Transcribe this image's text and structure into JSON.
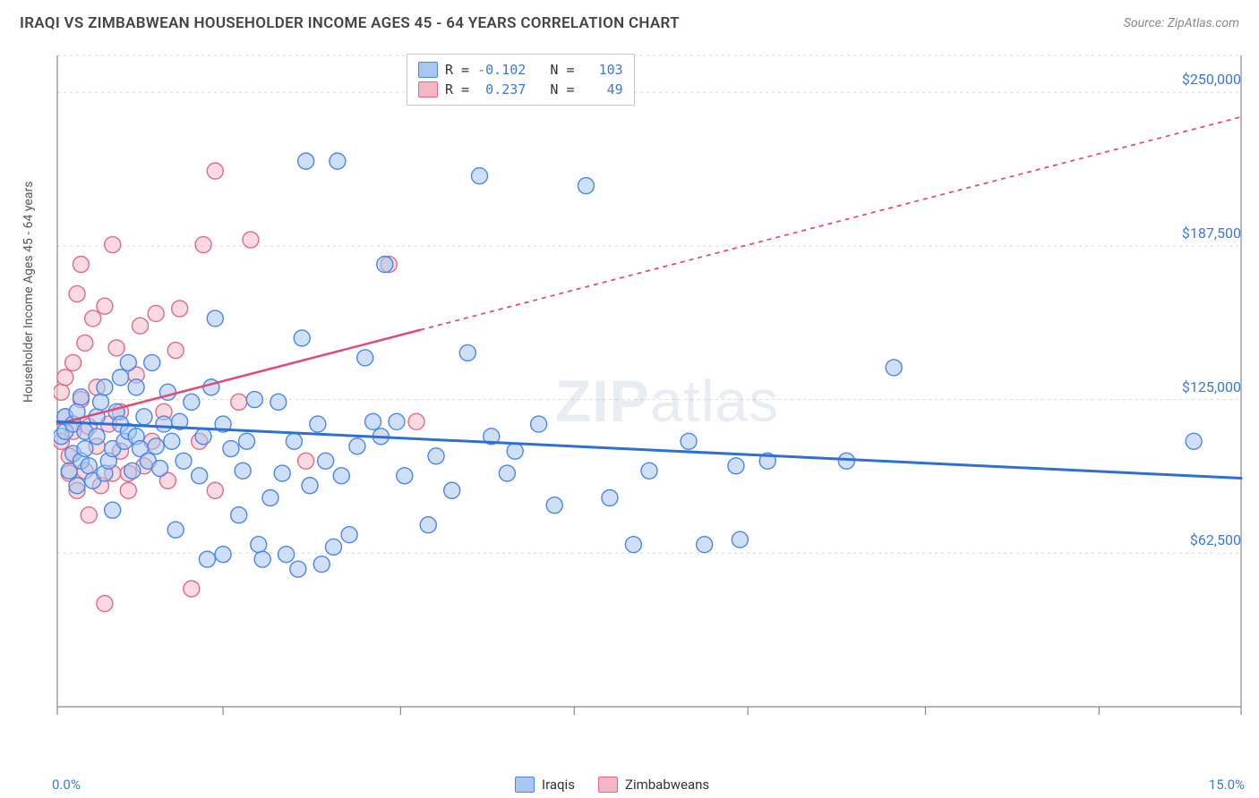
{
  "header": {
    "title": "IRAQI VS ZIMBABWEAN HOUSEHOLDER INCOME AGES 45 - 64 YEARS CORRELATION CHART",
    "source_label": "Source: ZipAtlas.com"
  },
  "chart": {
    "type": "scatter",
    "ylabel": "Householder Income Ages 45 - 64 years",
    "xlim": [
      0.0,
      15.0
    ],
    "ylim": [
      0,
      265000
    ],
    "x_tick_positions": [
      0,
      2.1,
      4.35,
      6.55,
      8.75,
      11.0,
      13.2,
      15.0
    ],
    "y_gridlines": [
      62500,
      125000,
      187500,
      250000
    ],
    "y_tick_labels": [
      "$62,500",
      "$125,000",
      "$187,500",
      "$250,000"
    ],
    "x_min_label": "0.0%",
    "x_max_label": "15.0%",
    "background_color": "#ffffff",
    "grid_color": "#d8d8d8",
    "axis_color": "#888888",
    "series": {
      "iraqis": {
        "label": "Iraqis",
        "marker_fill": "#a8c6ef",
        "marker_stroke": "#4a86e8",
        "marker_radius": 9,
        "fill_opacity": 0.55,
        "R": "-0.102",
        "N": "103",
        "trend": {
          "color": "#2f6fd0",
          "width": 3,
          "y_at_x0": 116000,
          "y_at_x15": 93000,
          "solid_until_x": 15.0
        },
        "points": [
          [
            0.05,
            110000
          ],
          [
            0.1,
            112000
          ],
          [
            0.1,
            118000
          ],
          [
            0.15,
            96000
          ],
          [
            0.2,
            103000
          ],
          [
            0.2,
            115000
          ],
          [
            0.25,
            120000
          ],
          [
            0.25,
            90000
          ],
          [
            0.3,
            100000
          ],
          [
            0.3,
            126000
          ],
          [
            0.35,
            112000
          ],
          [
            0.35,
            105000
          ],
          [
            0.4,
            98000
          ],
          [
            0.45,
            92000
          ],
          [
            0.5,
            110000
          ],
          [
            0.5,
            118000
          ],
          [
            0.55,
            124000
          ],
          [
            0.6,
            130000
          ],
          [
            0.6,
            95000
          ],
          [
            0.65,
            100000
          ],
          [
            0.7,
            105000
          ],
          [
            0.7,
            80000
          ],
          [
            0.75,
            120000
          ],
          [
            0.8,
            115000
          ],
          [
            0.8,
            134000
          ],
          [
            0.85,
            108000
          ],
          [
            0.9,
            112000
          ],
          [
            0.9,
            140000
          ],
          [
            0.95,
            96000
          ],
          [
            1.0,
            110000
          ],
          [
            1.0,
            130000
          ],
          [
            1.05,
            105000
          ],
          [
            1.1,
            118000
          ],
          [
            1.15,
            100000
          ],
          [
            1.2,
            140000
          ],
          [
            1.25,
            106000
          ],
          [
            1.3,
            97000
          ],
          [
            1.35,
            115000
          ],
          [
            1.4,
            128000
          ],
          [
            1.45,
            108000
          ],
          [
            1.5,
            72000
          ],
          [
            1.55,
            116000
          ],
          [
            1.6,
            100000
          ],
          [
            1.7,
            124000
          ],
          [
            1.8,
            94000
          ],
          [
            1.85,
            110000
          ],
          [
            1.9,
            60000
          ],
          [
            1.95,
            130000
          ],
          [
            2.0,
            158000
          ],
          [
            2.1,
            115000
          ],
          [
            2.1,
            62000
          ],
          [
            2.2,
            105000
          ],
          [
            2.3,
            78000
          ],
          [
            2.35,
            96000
          ],
          [
            2.4,
            108000
          ],
          [
            2.5,
            125000
          ],
          [
            2.55,
            66000
          ],
          [
            2.6,
            60000
          ],
          [
            2.7,
            85000
          ],
          [
            2.8,
            124000
          ],
          [
            2.85,
            95000
          ],
          [
            2.9,
            62000
          ],
          [
            3.0,
            108000
          ],
          [
            3.05,
            56000
          ],
          [
            3.1,
            150000
          ],
          [
            3.15,
            222000
          ],
          [
            3.2,
            90000
          ],
          [
            3.3,
            115000
          ],
          [
            3.35,
            58000
          ],
          [
            3.4,
            100000
          ],
          [
            3.5,
            65000
          ],
          [
            3.55,
            222000
          ],
          [
            3.6,
            94000
          ],
          [
            3.7,
            70000
          ],
          [
            3.8,
            106000
          ],
          [
            3.9,
            142000
          ],
          [
            4.0,
            116000
          ],
          [
            4.1,
            110000
          ],
          [
            4.15,
            180000
          ],
          [
            4.3,
            116000
          ],
          [
            4.4,
            94000
          ],
          [
            4.7,
            74000
          ],
          [
            4.8,
            102000
          ],
          [
            5.0,
            88000
          ],
          [
            5.2,
            144000
          ],
          [
            5.35,
            216000
          ],
          [
            5.5,
            110000
          ],
          [
            5.7,
            95000
          ],
          [
            5.8,
            104000
          ],
          [
            6.1,
            115000
          ],
          [
            6.3,
            82000
          ],
          [
            6.7,
            212000
          ],
          [
            7.0,
            85000
          ],
          [
            7.3,
            66000
          ],
          [
            7.5,
            96000
          ],
          [
            8.0,
            108000
          ],
          [
            8.2,
            66000
          ],
          [
            8.6,
            98000
          ],
          [
            8.65,
            68000
          ],
          [
            9.0,
            100000
          ],
          [
            10.0,
            100000
          ],
          [
            10.6,
            138000
          ],
          [
            14.4,
            108000
          ]
        ]
      },
      "zimbabweans": {
        "label": "Zimbabweans",
        "marker_fill": "#f4b5c4",
        "marker_stroke": "#e06a8a",
        "marker_radius": 9,
        "fill_opacity": 0.5,
        "R": "0.237",
        "N": "49",
        "trend": {
          "color": "#e24a77",
          "width": 2.5,
          "y_at_x0": 115000,
          "y_at_x15": 240000,
          "solid_until_x": 4.6
        },
        "points": [
          [
            0.05,
            128000
          ],
          [
            0.05,
            108000
          ],
          [
            0.1,
            118000
          ],
          [
            0.1,
            134000
          ],
          [
            0.15,
            102000
          ],
          [
            0.15,
            95000
          ],
          [
            0.2,
            112000
          ],
          [
            0.2,
            140000
          ],
          [
            0.25,
            168000
          ],
          [
            0.25,
            88000
          ],
          [
            0.3,
            125000
          ],
          [
            0.3,
            180000
          ],
          [
            0.35,
            96000
          ],
          [
            0.35,
            148000
          ],
          [
            0.4,
            114000
          ],
          [
            0.4,
            78000
          ],
          [
            0.45,
            158000
          ],
          [
            0.5,
            106000
          ],
          [
            0.5,
            130000
          ],
          [
            0.55,
            90000
          ],
          [
            0.6,
            163000
          ],
          [
            0.6,
            42000
          ],
          [
            0.65,
            115000
          ],
          [
            0.7,
            188000
          ],
          [
            0.7,
            95000
          ],
          [
            0.75,
            146000
          ],
          [
            0.8,
            104000
          ],
          [
            0.8,
            120000
          ],
          [
            0.9,
            95000
          ],
          [
            0.9,
            88000
          ],
          [
            1.0,
            135000
          ],
          [
            1.05,
            155000
          ],
          [
            1.1,
            98000
          ],
          [
            1.2,
            108000
          ],
          [
            1.25,
            160000
          ],
          [
            1.35,
            120000
          ],
          [
            1.4,
            92000
          ],
          [
            1.5,
            145000
          ],
          [
            1.55,
            162000
          ],
          [
            1.7,
            48000
          ],
          [
            1.8,
            108000
          ],
          [
            1.85,
            188000
          ],
          [
            2.0,
            218000
          ],
          [
            2.0,
            88000
          ],
          [
            2.3,
            124000
          ],
          [
            2.45,
            190000
          ],
          [
            3.15,
            100000
          ],
          [
            4.2,
            180000
          ],
          [
            4.55,
            116000
          ]
        ]
      }
    },
    "legend": {
      "border_color": "#c9c9c9",
      "swatch_iraqi_fill": "#a8c6ef",
      "swatch_iraqi_stroke": "#4a86e8",
      "swatch_zimb_fill": "#f4b5c4",
      "swatch_zimb_stroke": "#e06a8a"
    },
    "watermark": {
      "part1": "ZIP",
      "part2": "atlas"
    }
  }
}
